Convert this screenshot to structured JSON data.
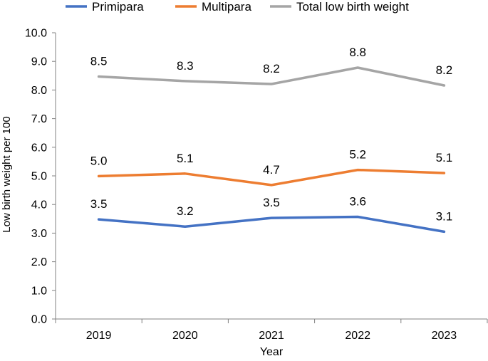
{
  "chart_data": {
    "type": "line",
    "title": "",
    "xlabel": "Year",
    "ylabel": "Low birth weight per 100",
    "categories": [
      "2019",
      "2020",
      "2021",
      "2022",
      "2023"
    ],
    "ylim": [
      0,
      10
    ],
    "yticks": [
      "0.0",
      "1.0",
      "2.0",
      "3.0",
      "4.0",
      "5.0",
      "6.0",
      "7.0",
      "8.0",
      "9.0",
      "10.0"
    ],
    "grid": false,
    "legend_position": "top",
    "series": [
      {
        "name": "Primipara",
        "color": "#4472C4",
        "values": [
          3.48,
          3.23,
          3.53,
          3.57,
          3.05
        ],
        "labels": [
          "3.5",
          "3.2",
          "3.5",
          "3.6",
          "3.1"
        ]
      },
      {
        "name": "Multipara",
        "color": "#ED7D31",
        "values": [
          4.99,
          5.08,
          4.68,
          5.21,
          5.1
        ],
        "labels": [
          "5.0",
          "5.1",
          "4.7",
          "5.2",
          "5.1"
        ]
      },
      {
        "name": "Total low birth weight",
        "color": "#A5A5A5",
        "values": [
          8.47,
          8.31,
          8.21,
          8.78,
          8.16
        ],
        "labels": [
          "8.5",
          "8.3",
          "8.2",
          "8.8",
          "8.2"
        ]
      }
    ]
  }
}
